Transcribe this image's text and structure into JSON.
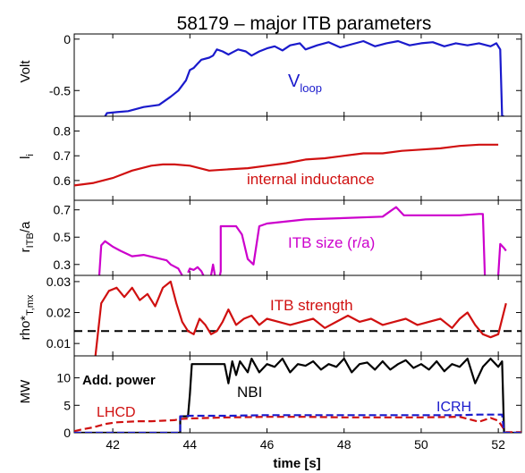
{
  "chart_data": {
    "type": "line",
    "title": "58179 – major ITB parameters",
    "xlabel": "time [s]",
    "xlim": [
      41,
      52.6
    ],
    "xticks": [
      42,
      44,
      46,
      48,
      50,
      52
    ],
    "panels": [
      {
        "id": "vloop",
        "ylabel": "Volt",
        "ylim": [
          -0.75,
          0.05
        ],
        "yticks": [
          0,
          -0.5
        ],
        "ytick_labels": [
          "0",
          "-0.5"
        ],
        "annotations": [
          {
            "text": "V",
            "sub": "loop",
            "color": "#1a1acc"
          }
        ],
        "series": [
          {
            "color": "#1a1acc",
            "x": [
              41.8,
              41.85,
              42.1,
              42.4,
              42.8,
              43.2,
              43.5,
              43.7,
              43.9,
              44.0,
              44.1,
              44.2,
              44.3,
              44.5,
              44.6,
              44.7,
              44.85,
              45.0,
              45.1,
              45.25,
              45.45,
              45.6,
              45.8,
              46.0,
              46.2,
              46.4,
              46.6,
              46.85,
              47.0,
              47.3,
              47.6,
              47.9,
              48.2,
              48.5,
              48.8,
              49.1,
              49.4,
              49.7,
              50.0,
              50.3,
              50.6,
              50.9,
              51.2,
              51.5,
              51.8,
              51.95,
              52.05,
              52.1,
              52.15
            ],
            "y": [
              -0.75,
              -0.72,
              -0.71,
              -0.7,
              -0.66,
              -0.64,
              -0.56,
              -0.5,
              -0.4,
              -0.3,
              -0.28,
              -0.24,
              -0.2,
              -0.18,
              -0.16,
              -0.1,
              -0.12,
              -0.15,
              -0.13,
              -0.1,
              -0.12,
              -0.16,
              -0.12,
              -0.09,
              -0.07,
              -0.11,
              -0.06,
              -0.04,
              -0.1,
              -0.06,
              -0.03,
              -0.08,
              -0.05,
              -0.02,
              -0.07,
              -0.04,
              -0.02,
              -0.06,
              -0.04,
              -0.03,
              -0.07,
              -0.04,
              -0.06,
              -0.04,
              -0.07,
              -0.04,
              -0.1,
              -0.75,
              -0.75
            ]
          }
        ]
      },
      {
        "id": "li",
        "ylabel": "l",
        "ylabel_sub": "i",
        "ylim": [
          0.52,
          0.86
        ],
        "yticks": [
          0.6,
          0.7,
          0.8
        ],
        "ytick_labels": [
          "0.6",
          "0.7",
          "0.8"
        ],
        "annotations": [
          {
            "text": "internal inductance",
            "color": "#d01010"
          }
        ],
        "series": [
          {
            "color": "#d01010",
            "x": [
              41,
              41.5,
              42,
              42.5,
              43,
              43.3,
              43.6,
              44,
              44.5,
              45,
              45.5,
              46,
              46.5,
              47,
              47.5,
              48,
              48.5,
              49,
              49.5,
              50,
              50.5,
              51,
              51.5,
              52
            ],
            "y": [
              0.58,
              0.59,
              0.61,
              0.64,
              0.66,
              0.665,
              0.665,
              0.66,
              0.64,
              0.645,
              0.65,
              0.66,
              0.67,
              0.685,
              0.69,
              0.7,
              0.71,
              0.71,
              0.72,
              0.725,
              0.73,
              0.74,
              0.745,
              0.745
            ]
          }
        ]
      },
      {
        "id": "rtb",
        "ylabel": "r",
        "ylabel_sub": "ITB",
        "ylabel_suffix": "/a",
        "ylim": [
          0.22,
          0.77
        ],
        "yticks": [
          0.3,
          0.5,
          0.7
        ],
        "ytick_labels": [
          "0.3",
          "0.5",
          "0.7"
        ],
        "annotations": [
          {
            "text": "ITB size (r/a)",
            "color": "#cc00cc"
          }
        ],
        "series": [
          {
            "color": "#cc00cc",
            "segments": [
              {
                "x": [
                  41.65,
                  41.7,
                  41.8,
                  42.0,
                  42.2,
                  42.5,
                  42.8,
                  43.1,
                  43.4,
                  43.5,
                  43.7,
                  43.8
                ],
                "y": [
                  0.22,
                  0.44,
                  0.47,
                  0.43,
                  0.4,
                  0.36,
                  0.37,
                  0.35,
                  0.33,
                  0.3,
                  0.27,
                  0.22
                ]
              },
              {
                "x": [
                  43.95,
                  44.0,
                  44.1,
                  44.2,
                  44.3,
                  44.35
                ],
                "y": [
                  0.24,
                  0.27,
                  0.26,
                  0.28,
                  0.25,
                  0.22
                ]
              },
              {
                "x": [
                  44.55,
                  44.6,
                  44.65
                ],
                "y": [
                  0.22,
                  0.3,
                  0.22
                ]
              },
              {
                "x": [
                  44.78,
                  44.8,
                  44.8,
                  45.2,
                  45.35,
                  45.5,
                  45.65,
                  45.8,
                  46.0,
                  47.0,
                  48.0,
                  49.0,
                  49.2,
                  49.35,
                  49.55,
                  50.0,
                  51.0,
                  51.5,
                  51.6,
                  51.65
                ],
                "y": [
                  0.22,
                  0.25,
                  0.58,
                  0.58,
                  0.52,
                  0.34,
                  0.3,
                  0.58,
                  0.6,
                  0.63,
                  0.64,
                  0.65,
                  0.69,
                  0.72,
                  0.66,
                  0.66,
                  0.66,
                  0.67,
                  0.67,
                  0.22
                ]
              },
              {
                "x": [
                  52.0,
                  52.05,
                  52.15,
                  52.2
                ],
                "y": [
                  0.22,
                  0.45,
                  0.42,
                  0.4
                ]
              }
            ]
          }
        ]
      },
      {
        "id": "rho",
        "ylabel": "rho*",
        "ylabel_sub": "T,mx",
        "ylim": [
          0.006,
          0.032
        ],
        "yticks": [
          0.01,
          0.02,
          0.03
        ],
        "ytick_labels": [
          "0.01",
          "0.02",
          "0.03"
        ],
        "annotations": [
          {
            "text": "ITB strength",
            "color": "#d01010"
          }
        ],
        "reference_line": {
          "y": 0.014,
          "color": "#000000",
          "dashed": true
        },
        "series": [
          {
            "color": "#d01010",
            "x": [
              41.55,
              41.7,
              41.9,
              42.1,
              42.3,
              42.5,
              42.7,
              42.9,
              43.1,
              43.3,
              43.5,
              43.65,
              43.8,
              43.95,
              44.1,
              44.25,
              44.4,
              44.55,
              44.7,
              44.85,
              45.0,
              45.2,
              45.4,
              45.6,
              45.8,
              46.0,
              46.3,
              46.6,
              46.9,
              47.2,
              47.5,
              47.8,
              48.1,
              48.4,
              48.7,
              49.0,
              49.3,
              49.6,
              49.9,
              50.2,
              50.5,
              50.8,
              51.0,
              51.2,
              51.4,
              51.6,
              51.8,
              52.0,
              52.2
            ],
            "y": [
              0.006,
              0.023,
              0.027,
              0.028,
              0.025,
              0.028,
              0.024,
              0.026,
              0.022,
              0.028,
              0.03,
              0.023,
              0.017,
              0.014,
              0.013,
              0.018,
              0.016,
              0.013,
              0.014,
              0.017,
              0.021,
              0.016,
              0.018,
              0.019,
              0.016,
              0.018,
              0.017,
              0.016,
              0.017,
              0.018,
              0.015,
              0.017,
              0.019,
              0.017,
              0.018,
              0.016,
              0.017,
              0.018,
              0.016,
              0.017,
              0.018,
              0.015,
              0.018,
              0.02,
              0.016,
              0.013,
              0.012,
              0.013,
              0.023
            ]
          }
        ]
      },
      {
        "id": "power",
        "ylabel": "MW",
        "ylim": [
          0,
          14
        ],
        "yticks": [
          0,
          5,
          10
        ],
        "ytick_labels": [
          "0",
          "5",
          "10"
        ],
        "annotations": [
          {
            "text": "Add. power",
            "color": "#000000",
            "bold": true
          },
          {
            "text": "NBI",
            "color": "#000000"
          },
          {
            "text": "LHCD",
            "color": "#d01010"
          },
          {
            "text": "ICRH",
            "color": "#1a1acc"
          }
        ],
        "series": [
          {
            "name": "NBI",
            "color": "#000000",
            "x": [
              41,
              43.75,
              43.75,
              43.95,
              44.0,
              44.05,
              44.1,
              44.9,
              45.0,
              45.1,
              45.2,
              45.3,
              45.5,
              45.6,
              45.8,
              46.0,
              46.2,
              46.4,
              46.6,
              46.8,
              47.0,
              47.2,
              47.4,
              47.6,
              47.8,
              48.0,
              48.2,
              48.4,
              48.6,
              48.8,
              49.0,
              49.2,
              49.4,
              49.6,
              49.8,
              50.0,
              50.2,
              50.4,
              50.6,
              50.8,
              51.0,
              51.2,
              51.4,
              51.6,
              51.8,
              52.0,
              52.1,
              52.15,
              52.6
            ],
            "y": [
              0,
              0,
              3,
              3,
              7,
              12.5,
              12.5,
              12.5,
              9,
              13,
              10.5,
              13,
              11,
              13.5,
              11,
              12.5,
              12,
              13.5,
              11,
              12.5,
              12.2,
              13,
              11.5,
              12.5,
              12,
              13.5,
              11,
              12.5,
              12.8,
              11.5,
              13,
              11.5,
              12.5,
              13.2,
              11.8,
              12.5,
              11.5,
              13,
              11.2,
              12.5,
              12,
              13.5,
              9,
              12,
              13.5,
              12,
              13,
              0,
              0
            ]
          },
          {
            "name": "LHCD",
            "color": "#d01010",
            "dashed": true,
            "x": [
              41,
              41.2,
              41.5,
              41.8,
              42.1,
              42.4,
              42.7,
              43.0,
              43.3,
              43.6,
              43.75,
              44.0,
              44.5,
              45,
              46,
              47,
              48,
              49,
              50,
              51,
              51.5,
              51.8,
              52.0,
              52.2,
              52.6
            ],
            "y": [
              0.3,
              0.6,
              1.0,
              1.6,
              1.9,
              2.0,
              2.1,
              2.1,
              2.2,
              2.3,
              2.5,
              2.6,
              2.7,
              2.8,
              2.9,
              2.9,
              2.8,
              2.8,
              2.8,
              2.9,
              2.0,
              2.7,
              2.2,
              0.1,
              0.1
            ]
          },
          {
            "name": "ICRH",
            "color": "#1a1acc",
            "dashed": true,
            "x": [
              41,
              43.75,
              43.75,
              44,
              45,
              46,
              47,
              48,
              49,
              50,
              51,
              51.5,
              52.1,
              52.15,
              52.6
            ],
            "y": [
              0,
              0,
              3.0,
              3.1,
              3.1,
              3.2,
              3.2,
              3.2,
              3.2,
              3.2,
              3.2,
              3.3,
              3.3,
              0,
              0
            ]
          }
        ]
      }
    ]
  }
}
